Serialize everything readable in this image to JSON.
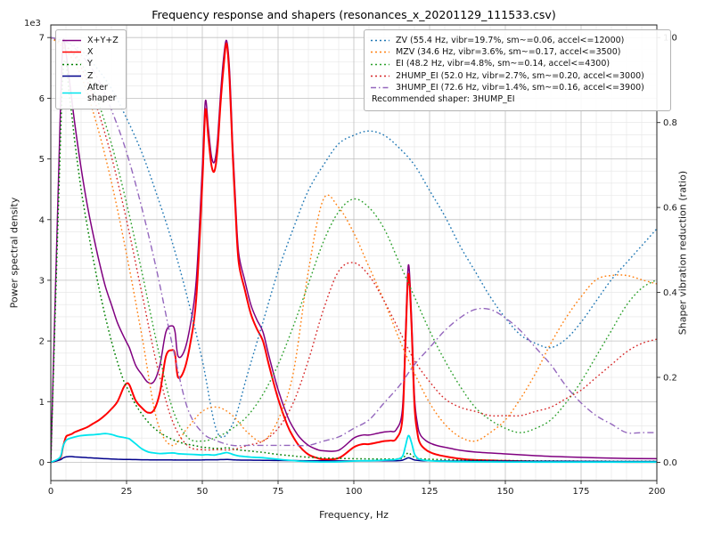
{
  "chart_data": {
    "type": "line",
    "title": "Frequency response and shapers (resonances_x_20201129_111533.csv)",
    "xlabel": "Frequency, Hz",
    "ylabel": "Power spectral density",
    "y2label": "Shaper vibration reduction (ratio)",
    "offset_text": "1e3",
    "xlim": [
      0,
      200
    ],
    "ylim_left": [
      0,
      7000
    ],
    "ylim_right": [
      0,
      1.0
    ],
    "grid": true,
    "x_ticks": [
      0,
      25,
      50,
      75,
      100,
      125,
      150,
      175,
      200
    ],
    "y_ticks_left": [
      0,
      1,
      2,
      3,
      4,
      5,
      6,
      7
    ],
    "y_ticks_right": [
      "0.0",
      "0.2",
      "0.4",
      "0.6",
      "0.8",
      "1.0"
    ],
    "x_psd": [
      0,
      3,
      4,
      5,
      6,
      7,
      8,
      10,
      12,
      14,
      16,
      18,
      20,
      22,
      24,
      25,
      26,
      28,
      30,
      32,
      34,
      36,
      38,
      40,
      41,
      42,
      44,
      46,
      48,
      50,
      51,
      52,
      53,
      54,
      55,
      56,
      57,
      58,
      59,
      60,
      61,
      62,
      64,
      66,
      68,
      70,
      72,
      75,
      78,
      80,
      82,
      85,
      88,
      90,
      95,
      100,
      103,
      105,
      108,
      110,
      112,
      114,
      116,
      117,
      118,
      119,
      120,
      121,
      122,
      124,
      126,
      128,
      130,
      135,
      140,
      150,
      160,
      170,
      180,
      190,
      200
    ],
    "psd_series": [
      {
        "key": "xyz",
        "name": "X+Y+Z",
        "color": "#800080",
        "dash": "solid",
        "width": 1.5,
        "y": [
          0,
          5500,
          6900,
          6750,
          6350,
          5950,
          5550,
          4850,
          4250,
          3750,
          3300,
          2900,
          2600,
          2300,
          2080,
          1980,
          1880,
          1600,
          1450,
          1320,
          1330,
          1600,
          2150,
          2250,
          2150,
          1750,
          1830,
          2250,
          3000,
          4850,
          5950,
          5500,
          5050,
          4950,
          5300,
          6050,
          6650,
          6950,
          6450,
          5250,
          4250,
          3450,
          3000,
          2600,
          2350,
          2150,
          1750,
          1200,
          770,
          570,
          420,
          280,
          210,
          190,
          200,
          400,
          450,
          450,
          480,
          500,
          510,
          540,
          860,
          2050,
          3250,
          2450,
          1100,
          630,
          450,
          350,
          300,
          270,
          250,
          200,
          170,
          140,
          110,
          90,
          75,
          65,
          60
        ]
      },
      {
        "key": "x",
        "name": "X",
        "color": "#ff0000",
        "dash": "solid",
        "width": 2,
        "y": [
          0,
          60,
          250,
          420,
          450,
          470,
          500,
          540,
          580,
          640,
          700,
          780,
          880,
          1000,
          1230,
          1300,
          1270,
          1020,
          900,
          820,
          860,
          1150,
          1750,
          1850,
          1780,
          1400,
          1520,
          1950,
          2700,
          4600,
          5800,
          5350,
          4900,
          4800,
          5150,
          5900,
          6500,
          6900,
          6300,
          5100,
          4100,
          3300,
          2850,
          2450,
          2200,
          2000,
          1600,
          1050,
          620,
          420,
          270,
          130,
          70,
          50,
          70,
          250,
          300,
          300,
          330,
          350,
          360,
          390,
          700,
          1900,
          3100,
          2300,
          950,
          480,
          300,
          200,
          150,
          120,
          100,
          60,
          40,
          25,
          15,
          10,
          8,
          6,
          6
        ]
      },
      {
        "key": "y",
        "name": "Y",
        "color": "#008000",
        "dash": "dotted",
        "width": 1.5,
        "y": [
          0,
          5000,
          6400,
          6600,
          6100,
          5700,
          5250,
          4500,
          3900,
          3350,
          2850,
          2400,
          2000,
          1650,
          1350,
          1250,
          1150,
          950,
          800,
          670,
          570,
          490,
          430,
          380,
          360,
          340,
          310,
          290,
          270,
          250,
          245,
          240,
          235,
          230,
          230,
          230,
          235,
          240,
          235,
          225,
          215,
          205,
          195,
          185,
          175,
          165,
          150,
          130,
          115,
          105,
          95,
          85,
          78,
          72,
          65,
          60,
          58,
          57,
          56,
          55,
          55,
          56,
          70,
          110,
          160,
          120,
          85,
          65,
          58,
          54,
          50,
          48,
          45,
          40,
          36,
          30,
          25,
          22,
          20,
          18,
          18
        ]
      },
      {
        "key": "z",
        "name": "Z",
        "color": "#00008b",
        "dash": "solid",
        "width": 1.5,
        "y": [
          0,
          40,
          70,
          90,
          95,
          95,
          90,
          85,
          78,
          72,
          66,
          60,
          56,
          52,
          49,
          48,
          47,
          45,
          43,
          42,
          41,
          40,
          40,
          39,
          39,
          38,
          38,
          38,
          38,
          40,
          42,
          43,
          43,
          42,
          43,
          45,
          46,
          48,
          45,
          42,
          40,
          38,
          37,
          36,
          35,
          34,
          33,
          31,
          30,
          29,
          28,
          27,
          26,
          25,
          24,
          24,
          24,
          24,
          25,
          25,
          26,
          27,
          35,
          55,
          75,
          60,
          40,
          32,
          28,
          26,
          25,
          24,
          23,
          22,
          21,
          20,
          18,
          17,
          16,
          15,
          15
        ]
      },
      {
        "key": "after",
        "name": "After shaper",
        "color": "#00e5ee",
        "dash": "solid",
        "width": 1.8,
        "y": [
          0,
          80,
          260,
          360,
          390,
          405,
          420,
          440,
          450,
          455,
          465,
          475,
          460,
          430,
          410,
          400,
          385,
          305,
          225,
          175,
          155,
          145,
          150,
          155,
          152,
          142,
          137,
          132,
          127,
          122,
          126,
          126,
          122,
          120,
          130,
          140,
          152,
          162,
          150,
          132,
          117,
          106,
          96,
          87,
          81,
          76,
          66,
          51,
          36,
          29,
          21,
          13,
          9,
          7,
          9,
          22,
          26,
          27,
          31,
          36,
          41,
          47,
          95,
          260,
          440,
          330,
          140,
          72,
          46,
          31,
          23,
          19,
          16,
          11,
          9,
          6,
          5,
          4,
          4,
          4,
          4
        ]
      }
    ],
    "x_shaper": [
      0,
      5,
      10,
      15,
      20,
      25,
      30,
      35,
      40,
      45,
      50,
      55,
      60,
      65,
      70,
      75,
      80,
      85,
      90,
      95,
      100,
      105,
      110,
      115,
      120,
      125,
      130,
      135,
      140,
      145,
      150,
      155,
      160,
      165,
      170,
      175,
      180,
      185,
      190,
      195,
      200
    ],
    "shaper_series": [
      {
        "key": "zv",
        "label": "ZV (55.4 Hz, vibr=19.7%, sm~=0.06, accel<=12000)",
        "color": "#1f77b4",
        "dash": "dotted",
        "values": [
          1.0,
          0.99,
          0.97,
          0.93,
          0.88,
          0.81,
          0.73,
          0.63,
          0.52,
          0.39,
          0.24,
          0.07,
          0.09,
          0.21,
          0.33,
          0.45,
          0.55,
          0.64,
          0.7,
          0.75,
          0.77,
          0.78,
          0.77,
          0.74,
          0.7,
          0.64,
          0.58,
          0.51,
          0.45,
          0.39,
          0.34,
          0.3,
          0.28,
          0.27,
          0.29,
          0.33,
          0.38,
          0.43,
          0.47,
          0.51,
          0.55
        ]
      },
      {
        "key": "mzv",
        "label": "MZV (34.6 Hz, vibr=3.6%, sm~=0.17, accel<=3500)",
        "color": "#ff7f0e",
        "dash": "dotted",
        "values": [
          1.0,
          0.97,
          0.91,
          0.8,
          0.66,
          0.49,
          0.3,
          0.1,
          0.04,
          0.08,
          0.12,
          0.13,
          0.11,
          0.07,
          0.05,
          0.1,
          0.21,
          0.45,
          0.62,
          0.6,
          0.54,
          0.46,
          0.38,
          0.29,
          0.21,
          0.14,
          0.09,
          0.06,
          0.05,
          0.07,
          0.1,
          0.15,
          0.21,
          0.28,
          0.34,
          0.39,
          0.43,
          0.44,
          0.44,
          0.43,
          0.42
        ]
      },
      {
        "key": "ei",
        "label": "EI (48.2 Hz, vibr=4.8%, sm~=0.14, accel<=4300)",
        "color": "#2ca02c",
        "dash": "dotted",
        "values": [
          1.0,
          0.98,
          0.94,
          0.86,
          0.75,
          0.61,
          0.45,
          0.28,
          0.13,
          0.06,
          0.05,
          0.06,
          0.08,
          0.11,
          0.16,
          0.23,
          0.32,
          0.42,
          0.52,
          0.59,
          0.62,
          0.6,
          0.55,
          0.47,
          0.39,
          0.31,
          0.24,
          0.18,
          0.13,
          0.1,
          0.08,
          0.07,
          0.08,
          0.1,
          0.14,
          0.19,
          0.25,
          0.31,
          0.37,
          0.41,
          0.43
        ]
      },
      {
        "key": "hump2",
        "label": "2HUMP_EI (52.0 Hz, vibr=2.7%, sm~=0.20, accel<=3000)",
        "color": "#d62728",
        "dash": "dotted",
        "values": [
          1.0,
          0.98,
          0.93,
          0.84,
          0.72,
          0.57,
          0.4,
          0.23,
          0.1,
          0.04,
          0.03,
          0.03,
          0.03,
          0.04,
          0.05,
          0.08,
          0.14,
          0.24,
          0.36,
          0.45,
          0.47,
          0.44,
          0.38,
          0.31,
          0.24,
          0.19,
          0.15,
          0.13,
          0.12,
          0.11,
          0.11,
          0.11,
          0.12,
          0.13,
          0.15,
          0.17,
          0.2,
          0.23,
          0.26,
          0.28,
          0.29
        ]
      },
      {
        "key": "hump3",
        "label": "3HUMP_EI (72.6 Hz, vibr=1.4%, sm~=0.16, accel<=3900)",
        "color": "#9467bd",
        "dash": "dashdot",
        "values": [
          1.0,
          0.99,
          0.96,
          0.91,
          0.83,
          0.73,
          0.6,
          0.45,
          0.28,
          0.13,
          0.07,
          0.05,
          0.04,
          0.04,
          0.04,
          0.04,
          0.04,
          0.04,
          0.05,
          0.06,
          0.08,
          0.1,
          0.14,
          0.18,
          0.23,
          0.27,
          0.31,
          0.34,
          0.36,
          0.36,
          0.34,
          0.31,
          0.27,
          0.23,
          0.18,
          0.14,
          0.11,
          0.09,
          0.07,
          0.07,
          0.07
        ]
      }
    ],
    "legend_left": {
      "entries": [
        {
          "label": "X+Y+Z",
          "series": "xyz"
        },
        {
          "label": "X",
          "series": "x"
        },
        {
          "label": "Y",
          "series": "y"
        },
        {
          "label": "Z",
          "series": "z"
        },
        {
          "label": "After\nshaper",
          "series": "after"
        }
      ]
    },
    "recommendation": "Recommended shaper: 3HUMP_EI"
  }
}
